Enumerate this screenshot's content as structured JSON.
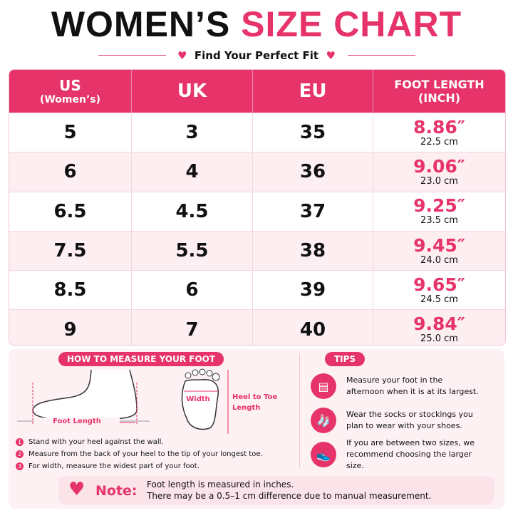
{
  "header": {
    "title_black": "WOMEN’S",
    "title_pink": "SIZE CHART",
    "subtitle": "Find Your Perfect Fit"
  },
  "table": {
    "columns": [
      {
        "label": "US",
        "sublabel": "(Women’s)"
      },
      {
        "label": "UK"
      },
      {
        "label": "EU"
      },
      {
        "label": "FOOT LENGTH",
        "sublabel": "(INCH)"
      }
    ],
    "rows": [
      {
        "us": "5",
        "uk": "3",
        "eu": "35",
        "inch": "8.86″",
        "cm": "22.5 cm"
      },
      {
        "us": "6",
        "uk": "4",
        "eu": "36",
        "inch": "9.06″",
        "cm": "23.0 cm"
      },
      {
        "us": "6.5",
        "uk": "4.5",
        "eu": "37",
        "inch": "9.25″",
        "cm": "23.5 cm"
      },
      {
        "us": "7.5",
        "uk": "5.5",
        "eu": "38",
        "inch": "9.45″",
        "cm": "24.0 cm"
      },
      {
        "us": "8.5",
        "uk": "6",
        "eu": "39",
        "inch": "9.65″",
        "cm": "24.5 cm"
      },
      {
        "us": "9",
        "uk": "7",
        "eu": "40",
        "inch": "9.84″",
        "cm": "25.0 cm"
      }
    ]
  },
  "measure": {
    "title": "HOW TO MEASURE YOUR FOOT",
    "diagram_labels": {
      "foot_length": "Foot Length",
      "width": "Width",
      "heel_to_toe": "Heel to Toe Length"
    },
    "steps": [
      {
        "number": "1",
        "text": "Stand with your heel against the wall."
      },
      {
        "number": "2",
        "text": "Measure from the back of your heel to the tip of your longest toe."
      },
      {
        "number": "3",
        "text": "For width, measure the widest part of your foot."
      }
    ]
  },
  "tips": {
    "title": "TIPS",
    "items": [
      "Measure your foot in the afternoon when it is at its largest.",
      "Wear the socks or stockings you plan to wear with your shoes.",
      "If you are between two sizes, we recommend choosing the larger size."
    ]
  },
  "note": {
    "label": "Note:",
    "lines": [
      "Foot length is measured in inches.",
      "There may be a 0.5–1 cm difference due to manual measurement."
    ]
  }
}
